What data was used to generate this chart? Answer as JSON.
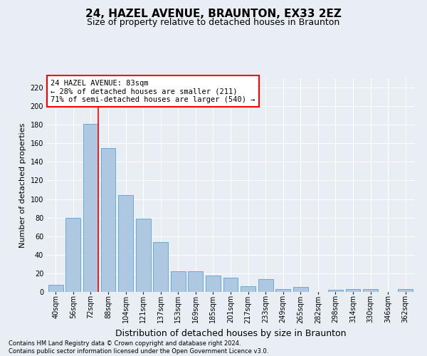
{
  "title1": "24, HAZEL AVENUE, BRAUNTON, EX33 2EZ",
  "title2": "Size of property relative to detached houses in Braunton",
  "xlabel": "Distribution of detached houses by size in Braunton",
  "ylabel": "Number of detached properties",
  "footnote": "Contains HM Land Registry data © Crown copyright and database right 2024.\nContains public sector information licensed under the Open Government Licence v3.0.",
  "categories": [
    "40sqm",
    "56sqm",
    "72sqm",
    "88sqm",
    "104sqm",
    "121sqm",
    "137sqm",
    "153sqm",
    "169sqm",
    "185sqm",
    "201sqm",
    "217sqm",
    "233sqm",
    "249sqm",
    "265sqm",
    "282sqm",
    "298sqm",
    "314sqm",
    "330sqm",
    "346sqm",
    "362sqm"
  ],
  "values": [
    8,
    80,
    181,
    155,
    104,
    79,
    54,
    22,
    22,
    18,
    15,
    6,
    14,
    3,
    5,
    0,
    2,
    3,
    3,
    0,
    3
  ],
  "bar_color": "#adc8e0",
  "bar_edge_color": "#6aaad4",
  "vline_color": "red",
  "vline_x_index": 2,
  "annotation_text": "24 HAZEL AVENUE: 83sqm\n← 28% of detached houses are smaller (211)\n71% of semi-detached houses are larger (540) →",
  "annotation_fontsize": 7.5,
  "ylim": [
    0,
    230
  ],
  "yticks": [
    0,
    20,
    40,
    60,
    80,
    100,
    120,
    140,
    160,
    180,
    200,
    220
  ],
  "background_color": "#e8eef4",
  "grid_color": "#ffffff",
  "title1_fontsize": 11,
  "title2_fontsize": 9,
  "xlabel_fontsize": 9,
  "ylabel_fontsize": 8,
  "tick_fontsize": 7
}
